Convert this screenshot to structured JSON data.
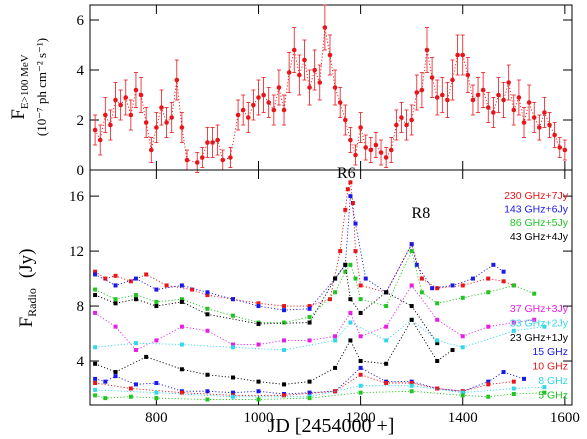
{
  "chart_data": [
    {
      "type": "scatter",
      "marker": "circle",
      "line_style": "dotted",
      "color": "#e8161b",
      "xtick_labels": false,
      "y_label": "F",
      "y_label_sub": "E>100 MeV",
      "y_label_units": "(10⁻⁷ ph cm⁻² s⁻¹)",
      "xlim": [
        670,
        1614
      ],
      "xticks": [
        800,
        1000,
        1200,
        1400,
        1600
      ],
      "ylim": [
        0,
        6.6
      ],
      "yticks": [
        0,
        2,
        4,
        6
      ],
      "x": [
        680,
        690,
        700,
        710,
        720,
        730,
        740,
        750,
        760,
        770,
        780,
        790,
        800,
        810,
        820,
        830,
        840,
        850,
        860,
        880,
        890,
        900,
        910,
        920,
        930,
        945,
        960,
        970,
        980,
        990,
        1000,
        1010,
        1020,
        1030,
        1040,
        1050,
        1060,
        1070,
        1080,
        1090,
        1100,
        1110,
        1120,
        1130,
        1140,
        1150,
        1160,
        1170,
        1180,
        1190,
        1200,
        1210,
        1220,
        1230,
        1240,
        1250,
        1260,
        1270,
        1280,
        1290,
        1300,
        1310,
        1320,
        1330,
        1340,
        1350,
        1360,
        1370,
        1380,
        1390,
        1400,
        1410,
        1420,
        1430,
        1440,
        1450,
        1460,
        1470,
        1480,
        1490,
        1500,
        1510,
        1520,
        1530,
        1540,
        1550,
        1560,
        1570,
        1580,
        1590,
        1600
      ],
      "values": [
        1.6,
        1.2,
        2.2,
        1.8,
        2.8,
        2.6,
        2.9,
        2.2,
        3.2,
        3.0,
        1.9,
        0.8,
        1.7,
        2.5,
        1.9,
        2.1,
        3.6,
        1.7,
        0.4,
        0.3,
        0.5,
        1.1,
        1.1,
        1.2,
        0.4,
        0.5,
        2.2,
        2.4,
        2.1,
        2.6,
        2.9,
        3.0,
        2.7,
        2.4,
        3.3,
        2.4,
        3.9,
        4.8,
        3.8,
        4.4,
        3.3,
        4.0,
        3.5,
        5.7,
        4.6,
        3.3,
        2.7,
        2.0,
        1.2,
        0.6,
        1.7,
        0.9,
        0.8,
        1.0,
        0.7,
        0.5,
        0.8,
        1.8,
        2.1,
        1.8,
        2.0,
        3.1,
        3.2,
        4.8,
        3.7,
        2.9,
        3.0,
        2.8,
        3.6,
        4.6,
        4.6,
        3.8,
        2.8,
        3.0,
        3.2,
        2.5,
        2.3,
        3.0,
        2.8,
        3.5,
        2.4,
        2.9,
        1.9,
        2.7,
        2.1,
        1.7,
        2.3,
        1.8,
        1.4,
        0.9,
        0.8
      ],
      "errors": [
        0.6,
        0.6,
        0.7,
        0.6,
        0.7,
        0.6,
        0.7,
        0.6,
        0.7,
        0.7,
        0.6,
        0.5,
        0.6,
        0.7,
        0.6,
        0.6,
        0.8,
        0.6,
        0.4,
        0.4,
        0.4,
        0.6,
        0.6,
        0.6,
        0.4,
        0.4,
        0.6,
        0.6,
        0.6,
        0.6,
        0.7,
        0.7,
        0.6,
        0.6,
        0.7,
        0.6,
        0.8,
        0.9,
        0.8,
        0.8,
        0.7,
        0.8,
        0.7,
        0.9,
        0.8,
        0.7,
        0.6,
        0.6,
        0.5,
        0.4,
        0.6,
        0.5,
        0.5,
        0.5,
        0.5,
        0.4,
        0.5,
        0.6,
        0.6,
        0.6,
        0.6,
        0.7,
        0.7,
        0.9,
        0.8,
        0.7,
        0.7,
        0.7,
        0.8,
        0.8,
        0.8,
        0.7,
        0.6,
        0.7,
        0.7,
        0.6,
        0.6,
        0.7,
        0.7,
        0.7,
        0.6,
        0.7,
        0.6,
        0.7,
        0.6,
        0.5,
        0.6,
        0.5,
        0.5,
        0.4,
        0.4
      ]
    },
    {
      "type": "scatter",
      "marker": "square",
      "line_style": "dotted",
      "xtick_labels": true,
      "y_label": "F",
      "y_label_sub": "Radio",
      "y_label_units": "(Jy)",
      "x_label": "JD [2454000 +]",
      "xlim": [
        670,
        1614
      ],
      "xticks": [
        800,
        1000,
        1200,
        1400,
        1600
      ],
      "ylim": [
        0.8,
        17.9
      ],
      "yticks": [
        4,
        8,
        12,
        16
      ],
      "annotations": [
        {
          "text": "R6",
          "x": 1172,
          "y": 17.3
        },
        {
          "text": "R8",
          "x": 1318,
          "y": 14.4
        }
      ],
      "series": [
        {
          "name": "230 GHz+7Jy",
          "color": "#e8161b",
          "x": [
            680,
            700,
            720,
            750,
            780,
            820,
            870,
            900,
            950,
            1000,
            1050,
            1100,
            1140,
            1160,
            1170,
            1175,
            1180,
            1185,
            1190,
            1200,
            1250,
            1300,
            1320,
            1350,
            1400,
            1450,
            1480,
            1500
          ],
          "values": [
            10.5,
            10,
            10.2,
            9.8,
            10.3,
            9.5,
            9.2,
            8.8,
            8.5,
            8.2,
            8,
            8,
            8.5,
            12,
            15,
            16.5,
            17,
            15.5,
            12,
            9.5,
            9,
            12.5,
            10,
            9.3,
            9.5,
            10,
            9.8,
            9.5
          ]
        },
        {
          "name": "143 GHz+6Jy",
          "color": "#1a1ae6",
          "x": [
            680,
            720,
            760,
            800,
            850,
            900,
            950,
            1000,
            1050,
            1100,
            1150,
            1170,
            1180,
            1190,
            1210,
            1250,
            1300,
            1310,
            1340,
            1380,
            1420,
            1460,
            1480
          ],
          "values": [
            10.3,
            9.5,
            10,
            9.2,
            9.5,
            9,
            8.5,
            8,
            7.7,
            7.8,
            10,
            11,
            16,
            14,
            10,
            9,
            12.5,
            11,
            9.3,
            9.5,
            10,
            11,
            10.5
          ]
        },
        {
          "name": "86 GHz+5Jy",
          "color": "#22c322",
          "x": [
            680,
            720,
            760,
            800,
            850,
            900,
            950,
            1000,
            1050,
            1100,
            1150,
            1170,
            1180,
            1190,
            1200,
            1250,
            1300,
            1320,
            1350,
            1400,
            1450,
            1500,
            1540
          ],
          "values": [
            9.2,
            8.5,
            8.8,
            8.3,
            8.5,
            7.8,
            7.3,
            6.8,
            6.8,
            7.2,
            9,
            10.5,
            11,
            10,
            8.5,
            8,
            12,
            9,
            8.2,
            8.6,
            9,
            9.5,
            8.9
          ]
        },
        {
          "name": "43 GHz+4Jy",
          "color": "#000000",
          "x": [
            680,
            720,
            760,
            800,
            850,
            900,
            1000,
            1100,
            1150,
            1170,
            1180,
            1200,
            1250,
            1300,
            1350
          ],
          "values": [
            8.8,
            8.2,
            8.5,
            8,
            8.3,
            7.4,
            6.7,
            6.8,
            10,
            11,
            8.5,
            7.5,
            9,
            8,
            5.3
          ]
        },
        {
          "name": "37 GHz+3Jy",
          "color": "#e61ee6",
          "x": [
            680,
            720,
            760,
            800,
            850,
            900,
            950,
            1000,
            1050,
            1100,
            1150,
            1180,
            1200,
            1250,
            1300,
            1350,
            1400,
            1450,
            1500,
            1540
          ],
          "values": [
            7.5,
            6.5,
            4.8,
            5.5,
            6.5,
            6.2,
            5.2,
            5.2,
            5.5,
            5.5,
            5.8,
            7.5,
            5.8,
            6.5,
            9.5,
            7,
            5.8,
            6.5,
            6.8,
            7
          ]
        },
        {
          "name": "33 GHz+2Jy",
          "color": "#30d8e8",
          "x": [
            680,
            760,
            850,
            950,
            1050,
            1150,
            1180,
            1250,
            1300,
            1350,
            1400,
            1500,
            1560
          ],
          "values": [
            5,
            5.3,
            5.2,
            5,
            4.8,
            5.5,
            6.8,
            5.5,
            7,
            5.5,
            5,
            6.2,
            6.5
          ]
        },
        {
          "name": "23 GHz+1Jy",
          "color": "#000000",
          "x": [
            680,
            720,
            780,
            850,
            900,
            950,
            1000,
            1050,
            1100,
            1150,
            1180,
            1200,
            1250,
            1300,
            1350,
            1380
          ],
          "values": [
            3.8,
            3.2,
            4.3,
            3.4,
            3,
            2.8,
            2.5,
            2.3,
            2.5,
            3.5,
            5.5,
            4,
            3.8,
            7,
            4,
            4.8
          ]
        },
        {
          "name": "15 GHz",
          "color": "#1a1ae6",
          "x": [
            680,
            700,
            720,
            760,
            800,
            850,
            900,
            950,
            1000,
            1050,
            1100,
            1150,
            1200,
            1250,
            1300,
            1350,
            1400,
            1450,
            1480,
            1520
          ],
          "values": [
            2.7,
            2.5,
            2.9,
            2.3,
            2.4,
            1.8,
            1.8,
            1.7,
            1.8,
            1.6,
            1.7,
            1.8,
            3.5,
            2.5,
            2.5,
            2,
            1.8,
            2.5,
            3.2,
            2.7
          ]
        },
        {
          "name": "10 GHz",
          "color": "#e8161b",
          "x": [
            680,
            750,
            850,
            950,
            1050,
            1150,
            1200,
            1250,
            1300,
            1350,
            1400,
            1450,
            1500
          ],
          "values": [
            2.4,
            2,
            1.7,
            1.5,
            1.5,
            1.8,
            3,
            2.4,
            2.4,
            2,
            1.8,
            2.3,
            2.5
          ]
        },
        {
          "name": "8 GHz",
          "color": "#30d8e8",
          "x": [
            680,
            800,
            950,
            1100,
            1200,
            1300,
            1400,
            1500,
            1560
          ],
          "values": [
            1.9,
            1.7,
            1.4,
            1.4,
            2.2,
            2.2,
            1.7,
            2,
            2.1
          ]
        },
        {
          "name": "5 GHz",
          "color": "#22c322",
          "x": [
            680,
            700,
            750,
            800,
            900,
            1000,
            1100,
            1200,
            1300,
            1400,
            1450,
            1500,
            1560
          ],
          "values": [
            1.5,
            1.3,
            1.4,
            1.3,
            1.2,
            1.2,
            1.3,
            1.7,
            1.8,
            1.5,
            1.4,
            1.6,
            1.7
          ]
        }
      ]
    }
  ]
}
